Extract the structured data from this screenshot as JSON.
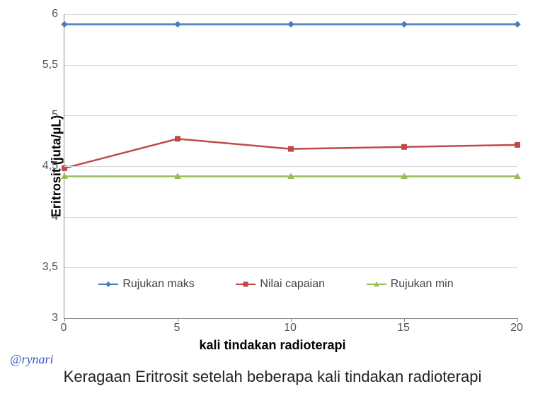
{
  "chart": {
    "type": "line",
    "background_color": "#ffffff",
    "grid_color": "#d9d9d9",
    "axis_color": "#888888",
    "xaxis_title": "kali tindakan radioterapi",
    "yaxis_title": "Eritrosit (juta/µL)",
    "title_fontsize": 18,
    "label_fontsize": 16,
    "xlim": [
      0,
      20
    ],
    "ylim": [
      3,
      6
    ],
    "xticks": [
      0,
      5,
      10,
      15,
      20
    ],
    "yticks": [
      3,
      3.5,
      4,
      4.5,
      5,
      5.5,
      6
    ],
    "ytick_labels": [
      "3",
      "3,5",
      "4",
      "4,5",
      "5",
      "5,5",
      "6"
    ],
    "decimal_separator": ",",
    "series": [
      {
        "name": "Rujukan maks",
        "color": "#4a7ebb",
        "marker": "diamond",
        "marker_size": 8,
        "line_width": 2.5,
        "x": [
          0,
          5,
          10,
          15,
          20
        ],
        "y": [
          5.9,
          5.9,
          5.9,
          5.9,
          5.9
        ]
      },
      {
        "name": "Nilai capaian",
        "color": "#be4b48",
        "marker": "square",
        "marker_size": 7,
        "line_width": 2.5,
        "x": [
          0,
          5,
          10,
          15,
          20
        ],
        "y": [
          4.48,
          4.77,
          4.67,
          4.69,
          4.71
        ]
      },
      {
        "name": "Rujukan min",
        "color": "#9bbb59",
        "marker": "triangle",
        "marker_size": 8,
        "line_width": 2.5,
        "x": [
          0,
          5,
          10,
          15,
          20
        ],
        "y": [
          4.4,
          4.4,
          4.4,
          4.4,
          4.4
        ]
      }
    ],
    "legend_position_y": 3.4,
    "legend_labels": [
      "Rujukan maks",
      "Nilai capaian",
      "Rujukan min"
    ]
  },
  "watermark": "@rynari",
  "watermark_color": "#3b5cbf",
  "caption": "Keragaan Eritrosit setelah beberapa kali tindakan radioterapi",
  "caption_fontsize": 22
}
